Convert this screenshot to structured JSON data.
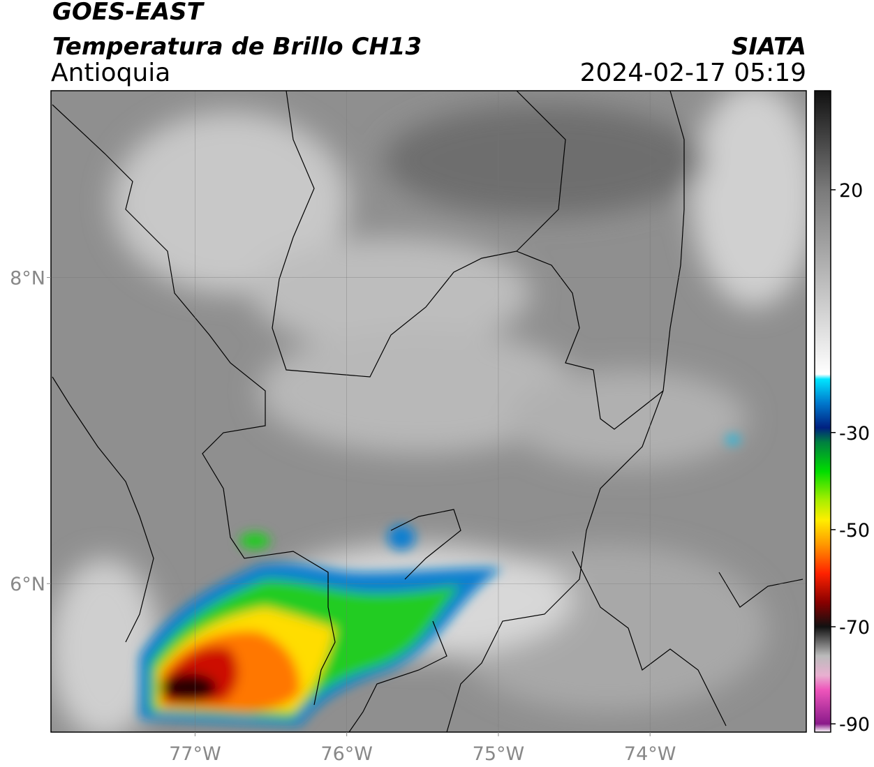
{
  "header": {
    "title": "GOES-EAST",
    "subtitle": "Temperatura de Brillo CH13",
    "region": "Antioquia",
    "source": "SIATA",
    "datetime": "2024-02-17 05:19"
  },
  "map": {
    "xlim": [
      -77.95,
      -72.97
    ],
    "ylim": [
      5.03,
      9.22
    ],
    "xticks": [
      {
        "value": -77,
        "label": "77°W"
      },
      {
        "value": -76,
        "label": "76°W"
      },
      {
        "value": -75,
        "label": "75°W"
      },
      {
        "value": -74,
        "label": "74°W"
      }
    ],
    "yticks": [
      {
        "value": 6,
        "label": "6°N"
      },
      {
        "value": 8,
        "label": "8°N"
      }
    ],
    "grid": true
  },
  "colorbar": {
    "lim": [
      -91.7,
      40.4
    ],
    "ticks": [
      20,
      -30,
      -50,
      -70,
      -90
    ],
    "colormap": [
      {
        "value": 40.4,
        "color": "#111111"
      },
      {
        "value": 20,
        "color": "#7a7a7a"
      },
      {
        "value": -18,
        "color": "#ffffff"
      },
      {
        "value": -19,
        "color": "#00e5ff"
      },
      {
        "value": -24,
        "color": "#0077cc"
      },
      {
        "value": -29,
        "color": "#002080"
      },
      {
        "value": -32,
        "color": "#008040"
      },
      {
        "value": -38,
        "color": "#00dd00"
      },
      {
        "value": -44,
        "color": "#aaee00"
      },
      {
        "value": -48,
        "color": "#ffee00"
      },
      {
        "value": -53,
        "color": "#ff9900"
      },
      {
        "value": -59,
        "color": "#ff2200"
      },
      {
        "value": -65,
        "color": "#880000"
      },
      {
        "value": -70,
        "color": "#111111"
      },
      {
        "value": -76,
        "color": "#bbbbbb"
      },
      {
        "value": -80,
        "color": "#e8b0d0"
      },
      {
        "value": -83,
        "color": "#ee55bb"
      },
      {
        "value": -90,
        "color": "#8a1a8a"
      },
      {
        "value": -91.7,
        "color": "#ffffff"
      }
    ]
  }
}
